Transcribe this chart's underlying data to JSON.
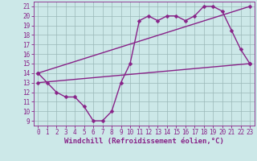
{
  "bg_color": "#cce8e8",
  "grid_color": "#9ab8b8",
  "line_color": "#882288",
  "xlabel": "Windchill (Refroidissement éolien,°C)",
  "xlim": [
    -0.5,
    23.5
  ],
  "ylim": [
    8.5,
    21.5
  ],
  "xticks": [
    0,
    1,
    2,
    3,
    4,
    5,
    6,
    7,
    8,
    9,
    10,
    11,
    12,
    13,
    14,
    15,
    16,
    17,
    18,
    19,
    20,
    21,
    22,
    23
  ],
  "yticks": [
    9,
    10,
    11,
    12,
    13,
    14,
    15,
    16,
    17,
    18,
    19,
    20,
    21
  ],
  "line1_x": [
    0,
    1,
    2,
    3,
    4,
    5,
    6,
    7,
    8,
    9,
    10,
    11,
    12,
    13,
    14,
    15,
    16,
    17,
    18,
    19,
    20,
    21,
    22,
    23
  ],
  "line1_y": [
    14,
    13,
    12,
    11.5,
    11.5,
    10.5,
    9,
    9,
    10,
    13,
    15,
    19.5,
    20,
    19.5,
    20,
    20,
    19.5,
    20,
    21,
    21,
    20.5,
    18.5,
    16.5,
    15
  ],
  "line2_x": [
    0,
    23
  ],
  "line2_y": [
    13.0,
    15.0
  ],
  "line3_x": [
    0,
    23
  ],
  "line3_y": [
    14.0,
    21.0
  ],
  "markersize": 2.5,
  "linewidth": 1.0,
  "tick_fontsize": 5.5,
  "label_fontsize": 6.5
}
